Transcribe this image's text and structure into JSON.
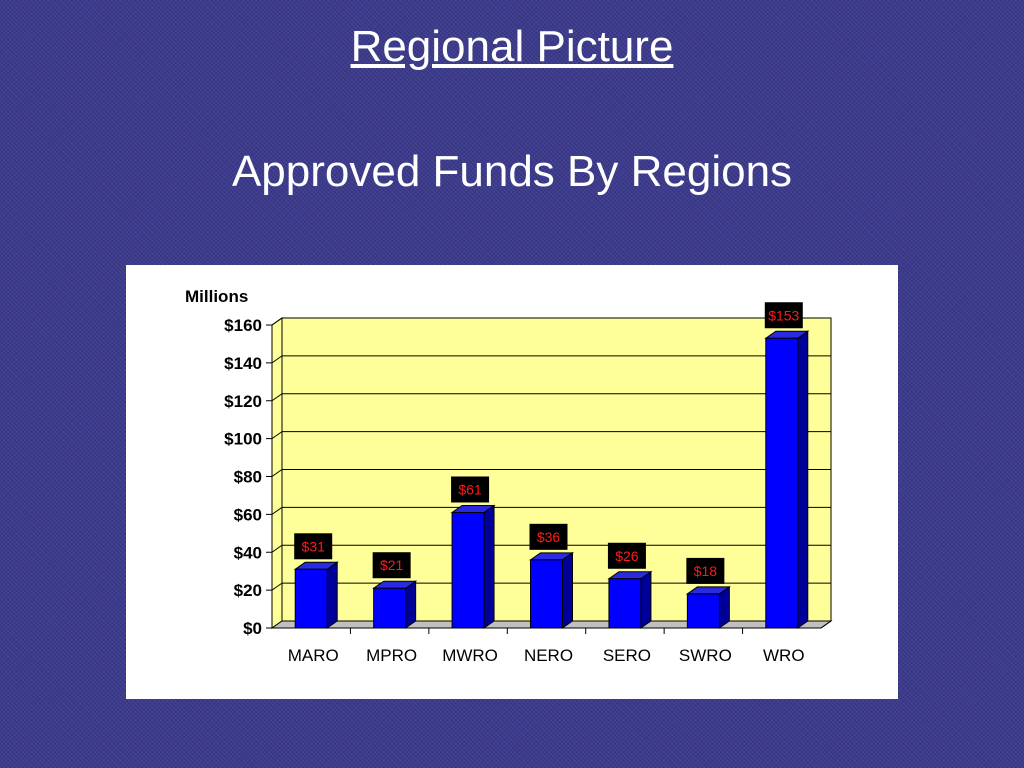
{
  "slide": {
    "title": "Regional Picture",
    "subtitle": "Approved Funds By Regions"
  },
  "colors": {
    "background": "#3b3a8c",
    "plot_area": "#ffff99",
    "bar_front": "#0000ff",
    "bar_side": "#000099",
    "bar_top": "#2a2ae0",
    "data_label_bg": "#000000",
    "data_label_text": "#ff1a1a"
  },
  "chart_data": {
    "type": "bar",
    "unit_label": "Millions",
    "categories": [
      "MARO",
      "MPRO",
      "MWRO",
      "NERO",
      "SERO",
      "SWRO",
      "WRO"
    ],
    "values": [
      31,
      21,
      61,
      36,
      26,
      18,
      153
    ],
    "data_labels": [
      "$31",
      "$21",
      "$61",
      "$36",
      "$26",
      "$18",
      "$153"
    ],
    "yticks": [
      0,
      20,
      40,
      60,
      80,
      100,
      120,
      140,
      160
    ],
    "ytick_labels": [
      "$0",
      "$20",
      "$40",
      "$60",
      "$80",
      "$100",
      "$120",
      "$140",
      "$160"
    ],
    "ylim": [
      0,
      160
    ],
    "grid": true,
    "style": "3d-column"
  }
}
